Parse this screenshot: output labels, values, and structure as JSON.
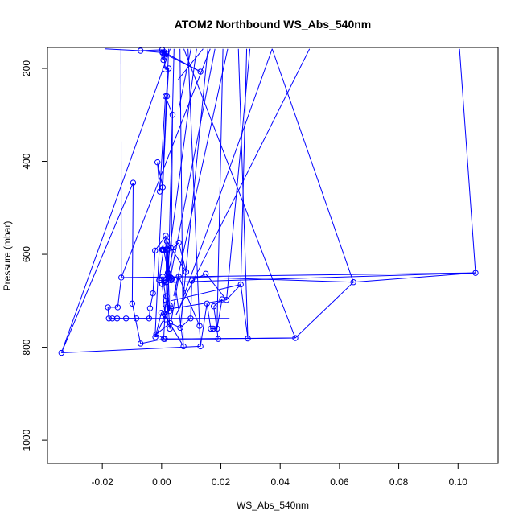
{
  "chart_data": {
    "type": "line",
    "title": "ATOM2 Northbound WS_Abs_540nm",
    "xlabel": "WS_Abs_540nm",
    "ylabel": "Pressure (mbar)",
    "xlim": [
      -0.0385,
      0.1135
    ],
    "ylim": [
      1050,
      155
    ],
    "y_reversed": true,
    "x_ticks": [
      -0.02,
      0.0,
      0.02,
      0.04,
      0.06,
      0.08,
      0.1
    ],
    "x_tick_labels": [
      "-0.02",
      "0.00",
      "0.02",
      "0.04",
      "0.06",
      "0.08",
      "0.10"
    ],
    "y_ticks": [
      200,
      400,
      600,
      800,
      1000
    ],
    "y_tick_labels": [
      "200",
      "400",
      "600",
      "800",
      "1000"
    ],
    "grid": false,
    "series_color": "#0000ff",
    "series": [
      {
        "marker": "open-circle",
        "x": [
          -0.0338,
          -0.0096,
          -0.0099,
          -0.0071,
          0.0007,
          0.0013,
          0.0028,
          -0.0021,
          -0.0001,
          0.0013,
          0.0002,
          0.0004,
          0.0015,
          0.0018,
          0.0023,
          0.0031,
          0.0016,
          0.0028,
          0.0058,
          0.0128,
          0.0131,
          0.0153,
          0.0166,
          0.0174,
          0.0187,
          0.0204,
          0.0176,
          0.0191,
          0.0011,
          -0.0018,
          0.0029,
          0.0063,
          0.0098,
          0.0102,
          0.0149,
          0.0219,
          0.0267,
          0.0291,
          0.0451,
          0.0647,
          0.1059,
          -0.0136,
          -0.0148,
          -0.0181,
          -0.0178,
          -0.0166,
          -0.015,
          -0.012,
          -0.0085,
          -0.0042,
          -0.0039,
          -0.0029,
          -0.0022,
          0.0014,
          0.0017,
          0.0027,
          0.0019,
          0.0031,
          0.0007,
          0.0023,
          0.0034,
          0.0032,
          0.0013,
          0.0,
          -0.0008,
          0.0006,
          0.0004,
          0.0002,
          0.0011,
          0.0019,
          0.0021,
          0.0016,
          0.0041,
          0.0058,
          0.0083,
          0.0018,
          0.0027,
          0.0044,
          0.0074,
          0.0008,
          0.0031,
          0.0037,
          0.0013,
          -0.0006,
          -0.0014,
          0.0004,
          0.0018,
          0.0024,
          0.0012,
          0.0009,
          0.0006,
          0.0012,
          0.0004,
          0.0016,
          0.0009,
          0.0131,
          0.0009,
          0.0003,
          -0.0071,
          0.0002
        ],
        "y": [
          812,
          446,
          706,
          792,
          782,
          708,
          710,
          778,
          726,
          740,
          664,
          648,
          700,
          718,
          654,
          650,
          660,
          760,
          648,
          754,
          798,
          706,
          760,
          760,
          760,
          697,
          712,
          782,
          782,
          772,
          748,
          758,
          738,
          657,
          642,
          698,
          665,
          781,
          780,
          660,
          640,
          650,
          714,
          714,
          738,
          738,
          738,
          738,
          738,
          738,
          716,
          684,
          592,
          560,
          690,
          722,
          588,
          586,
          590,
          642,
          652,
          656,
          656,
          656,
          656,
          592,
          590,
          590,
          585,
          590,
          640,
          660,
          585,
          575,
          638,
          572,
          648,
          655,
          798,
          728,
          716,
          300,
          260,
          465,
          402,
          456,
          260,
          200,
          202,
          176,
          182,
          170,
          166,
          168,
          165,
          207,
          168,
          166,
          162,
          160
        ]
      }
    ],
    "extra_segments": [
      {
        "from": [
          0.0029,
          158
        ],
        "to": [
          -0.0338,
          812
        ]
      },
      {
        "from": [
          0.0118,
          158
        ],
        "to": [
          0.0012,
          665
        ]
      },
      {
        "from": [
          0.018,
          158
        ],
        "to": [
          0.0029,
          652
        ]
      },
      {
        "from": [
          0.0223,
          158
        ],
        "to": [
          0.0041,
          690
        ]
      },
      {
        "from": [
          0.0287,
          158
        ],
        "to": [
          0.0267,
          665
        ]
      },
      {
        "from": [
          0.0373,
          158
        ],
        "to": [
          0.0058,
          720
        ]
      },
      {
        "from": [
          0.0373,
          158
        ],
        "to": [
          0.0647,
          660
        ]
      },
      {
        "from": [
          0.0499,
          158
        ],
        "to": [
          0.0049,
          730
        ]
      },
      {
        "from": [
          0.1005,
          158
        ],
        "to": [
          0.1059,
          640
        ]
      },
      {
        "from": [
          -0.0191,
          158
        ],
        "to": [
          -0.0072,
          162
        ]
      },
      {
        "from": [
          0.0075,
          158
        ],
        "to": [
          0.0451,
          780
        ]
      },
      {
        "from": [
          0.0259,
          158
        ],
        "to": [
          0.0291,
          781
        ]
      },
      {
        "from": [
          0.0089,
          158
        ],
        "to": [
          0.0131,
          798
        ]
      },
      {
        "from": [
          0.0062,
          158
        ],
        "to": [
          0.0073,
          798
        ]
      },
      {
        "from": [
          0.0042,
          158
        ],
        "to": [
          0.0018,
          772
        ]
      },
      {
        "from": [
          0.0024,
          158
        ],
        "to": [
          -0.0022,
          778
        ]
      },
      {
        "from": [
          -0.0137,
          158
        ],
        "to": [
          -0.0136,
          650
        ]
      },
      {
        "from": [
          0.0099,
          158
        ],
        "to": [
          0.0058,
          288
        ]
      },
      {
        "from": [
          0.014,
          158
        ],
        "to": [
          0.0056,
          224
        ]
      },
      {
        "from": [
          0.0164,
          158
        ],
        "to": [
          -0.0136,
          650
        ]
      },
      {
        "from": [
          0.0156,
          158
        ],
        "to": [
          0.0063,
          758
        ]
      },
      {
        "from": [
          0.0207,
          158
        ],
        "to": [
          0.0187,
          760
        ]
      },
      {
        "from": [
          0.0298,
          158
        ],
        "to": [
          0.0219,
          698
        ]
      },
      {
        "from": [
          -0.0338,
          812
        ],
        "to": [
          0.0131,
          798
        ]
      },
      {
        "from": [
          -0.0168,
          738
        ],
        "to": [
          0.0229,
          738
        ]
      },
      {
        "from": [
          0.0058,
          648
        ],
        "to": [
          0.0647,
          660
        ]
      },
      {
        "from": [
          0.0042,
          660
        ],
        "to": [
          0.1059,
          640
        ]
      },
      {
        "from": [
          0.0013,
          782
        ],
        "to": [
          0.0451,
          780
        ]
      },
      {
        "from": [
          0.0003,
          782
        ],
        "to": [
          0.0291,
          781
        ]
      },
      {
        "from": [
          0.0031,
          700
        ],
        "to": [
          0.0267,
          665
        ]
      },
      {
        "from": [
          0.0022,
          718
        ],
        "to": [
          0.0219,
          698
        ]
      }
    ]
  }
}
